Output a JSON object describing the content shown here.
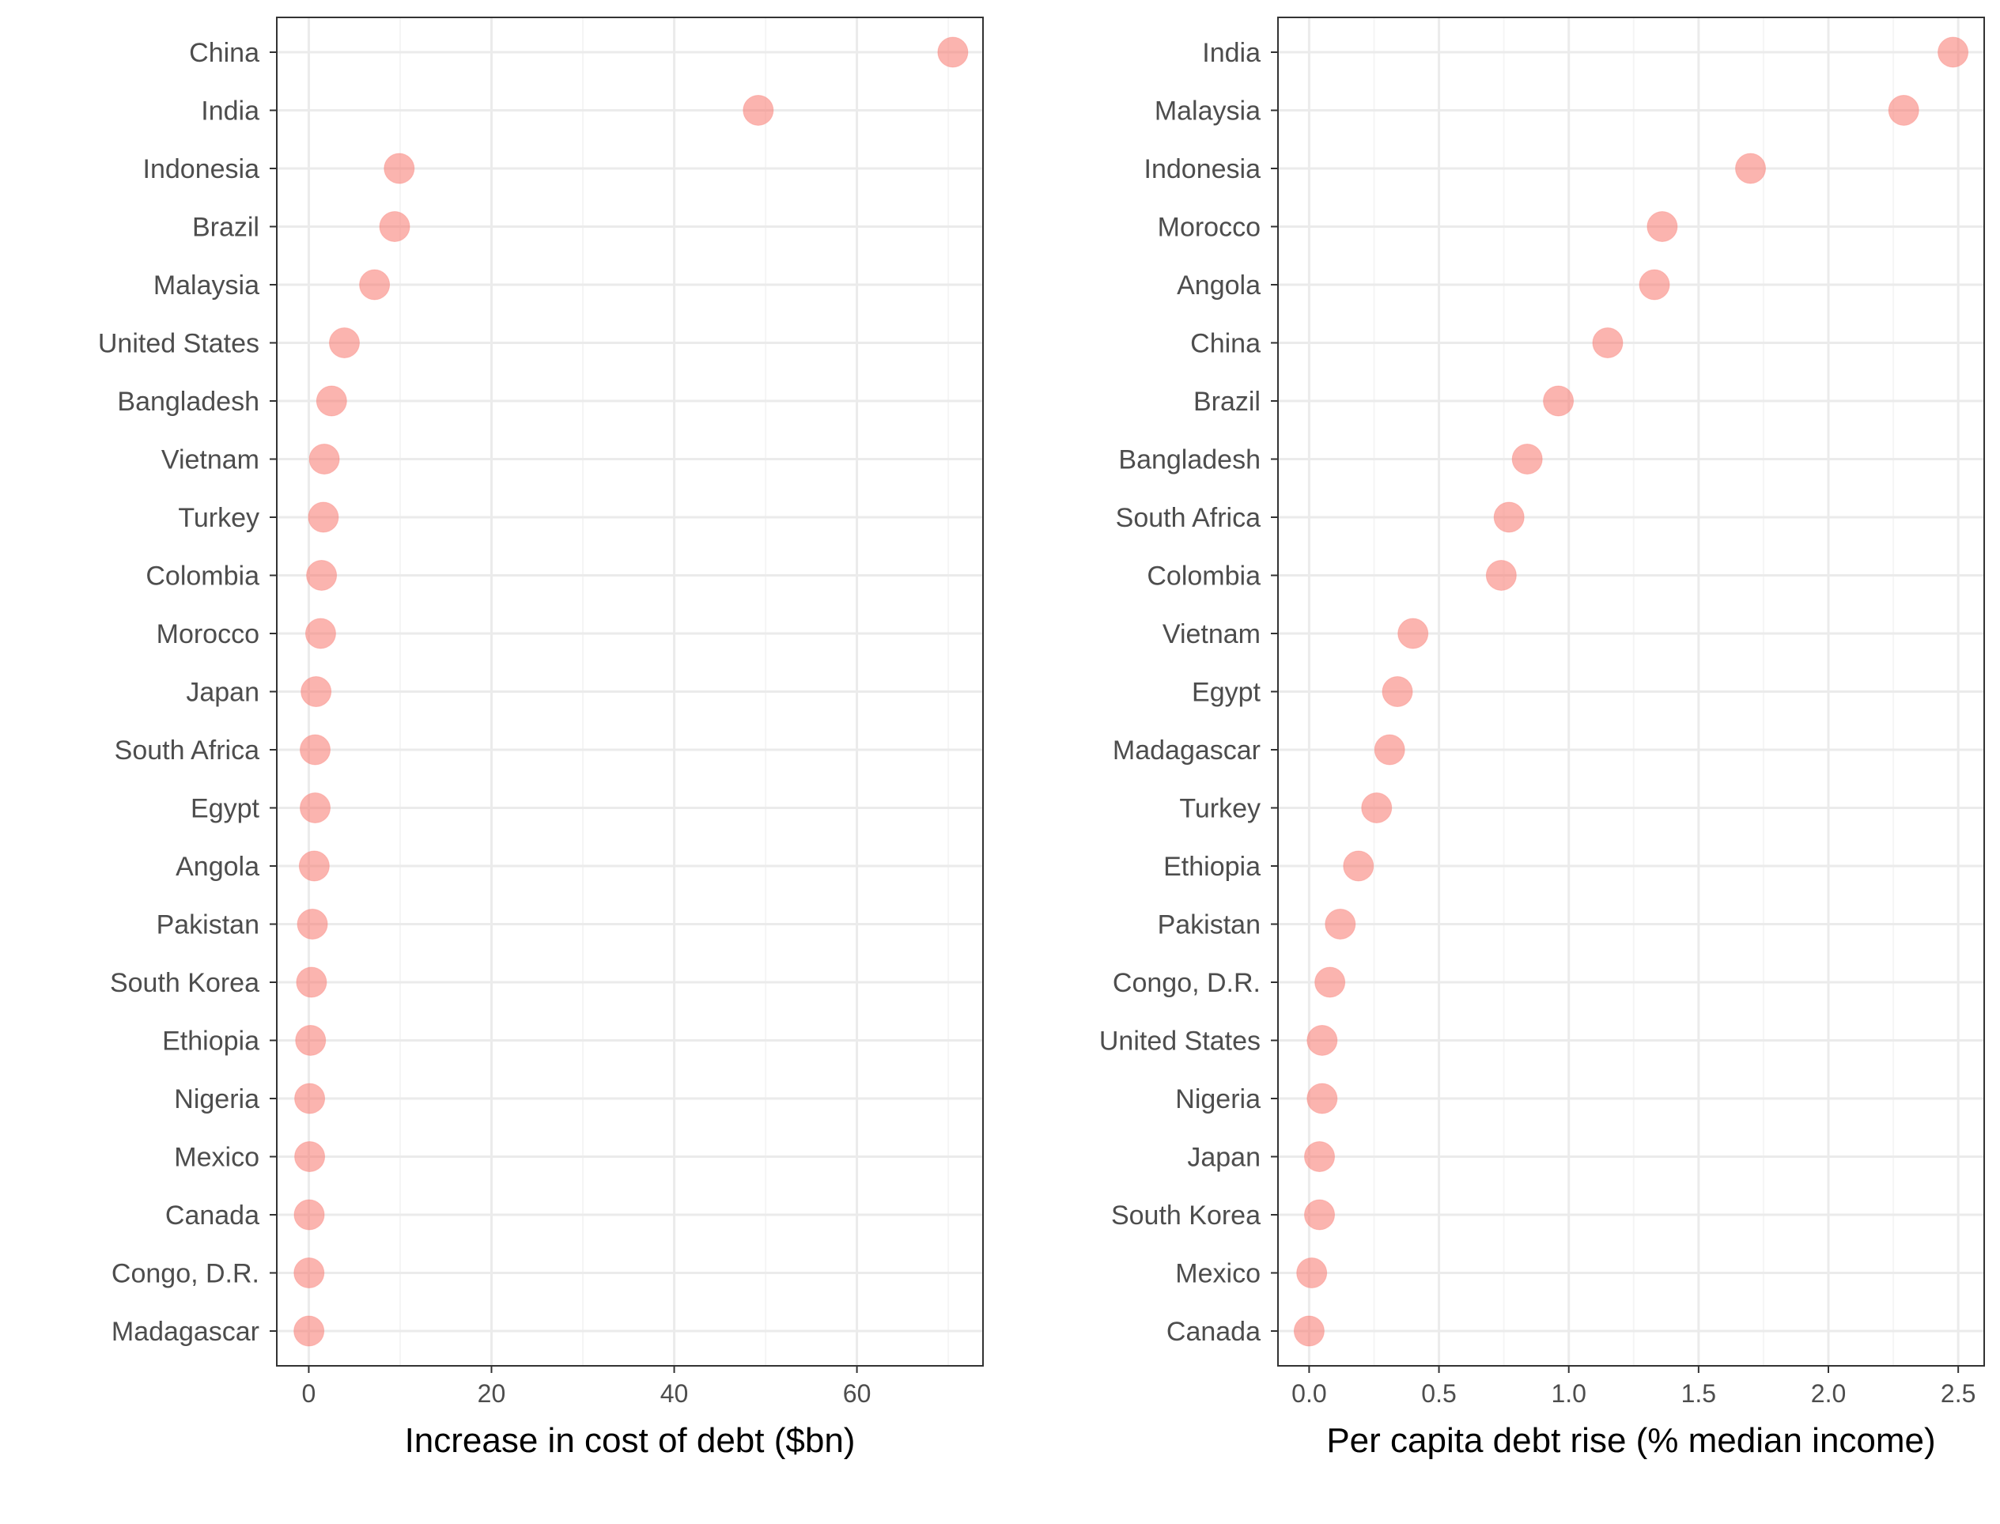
{
  "style": {
    "point_color": "#F8766D",
    "point_opacity": 0.55,
    "grid_major": "#EBEBEB",
    "grid_minor": "#F5F5F5",
    "panel_border": "#333333",
    "label_color": "#4D4D4D"
  },
  "chart_data": [
    {
      "type": "scatter",
      "xlabel": "Increase in cost of debt ($bn)",
      "xlim": [
        -3.5,
        73.8
      ],
      "xticks": [
        "0",
        "20",
        "40",
        "60"
      ],
      "xtick_values": [
        0,
        20,
        40,
        60
      ],
      "x_minor": [
        10,
        30,
        50,
        70
      ],
      "grid": true,
      "categories": [
        "China",
        "India",
        "Indonesia",
        "Brazil",
        "Malaysia",
        "United States",
        "Bangladesh",
        "Vietnam",
        "Turkey",
        "Colombia",
        "Morocco",
        "Japan",
        "South Africa",
        "Egypt",
        "Angola",
        "Pakistan",
        "South Korea",
        "Ethiopia",
        "Nigeria",
        "Mexico",
        "Canada",
        "Congo, D.R.",
        "Madagascar"
      ],
      "values": [
        70.5,
        49.2,
        9.9,
        9.4,
        7.2,
        3.9,
        2.5,
        1.7,
        1.6,
        1.4,
        1.3,
        0.8,
        0.7,
        0.7,
        0.6,
        0.4,
        0.3,
        0.2,
        0.1,
        0.1,
        0.05,
        0.03,
        0.02
      ]
    },
    {
      "type": "scatter",
      "xlabel": "Per capita debt rise (% median income)",
      "xlim": [
        -0.12,
        2.6
      ],
      "xticks": [
        "0.0",
        "0.5",
        "1.0",
        "1.5",
        "2.0",
        "2.5"
      ],
      "xtick_values": [
        0,
        0.5,
        1.0,
        1.5,
        2.0,
        2.5
      ],
      "x_minor": [
        0.25,
        0.75,
        1.25,
        1.75,
        2.25
      ],
      "grid": true,
      "categories": [
        "India",
        "Malaysia",
        "Indonesia",
        "Morocco",
        "Angola",
        "China",
        "Brazil",
        "Bangladesh",
        "South Africa",
        "Colombia",
        "Vietnam",
        "Egypt",
        "Madagascar",
        "Turkey",
        "Ethiopia",
        "Pakistan",
        "Congo, D.R.",
        "United States",
        "Nigeria",
        "Japan",
        "South Korea",
        "Mexico",
        "Canada"
      ],
      "values": [
        2.48,
        2.29,
        1.7,
        1.36,
        1.33,
        1.15,
        0.96,
        0.84,
        0.77,
        0.74,
        0.4,
        0.34,
        0.31,
        0.26,
        0.19,
        0.12,
        0.08,
        0.05,
        0.05,
        0.04,
        0.04,
        0.01,
        0.0
      ]
    }
  ]
}
